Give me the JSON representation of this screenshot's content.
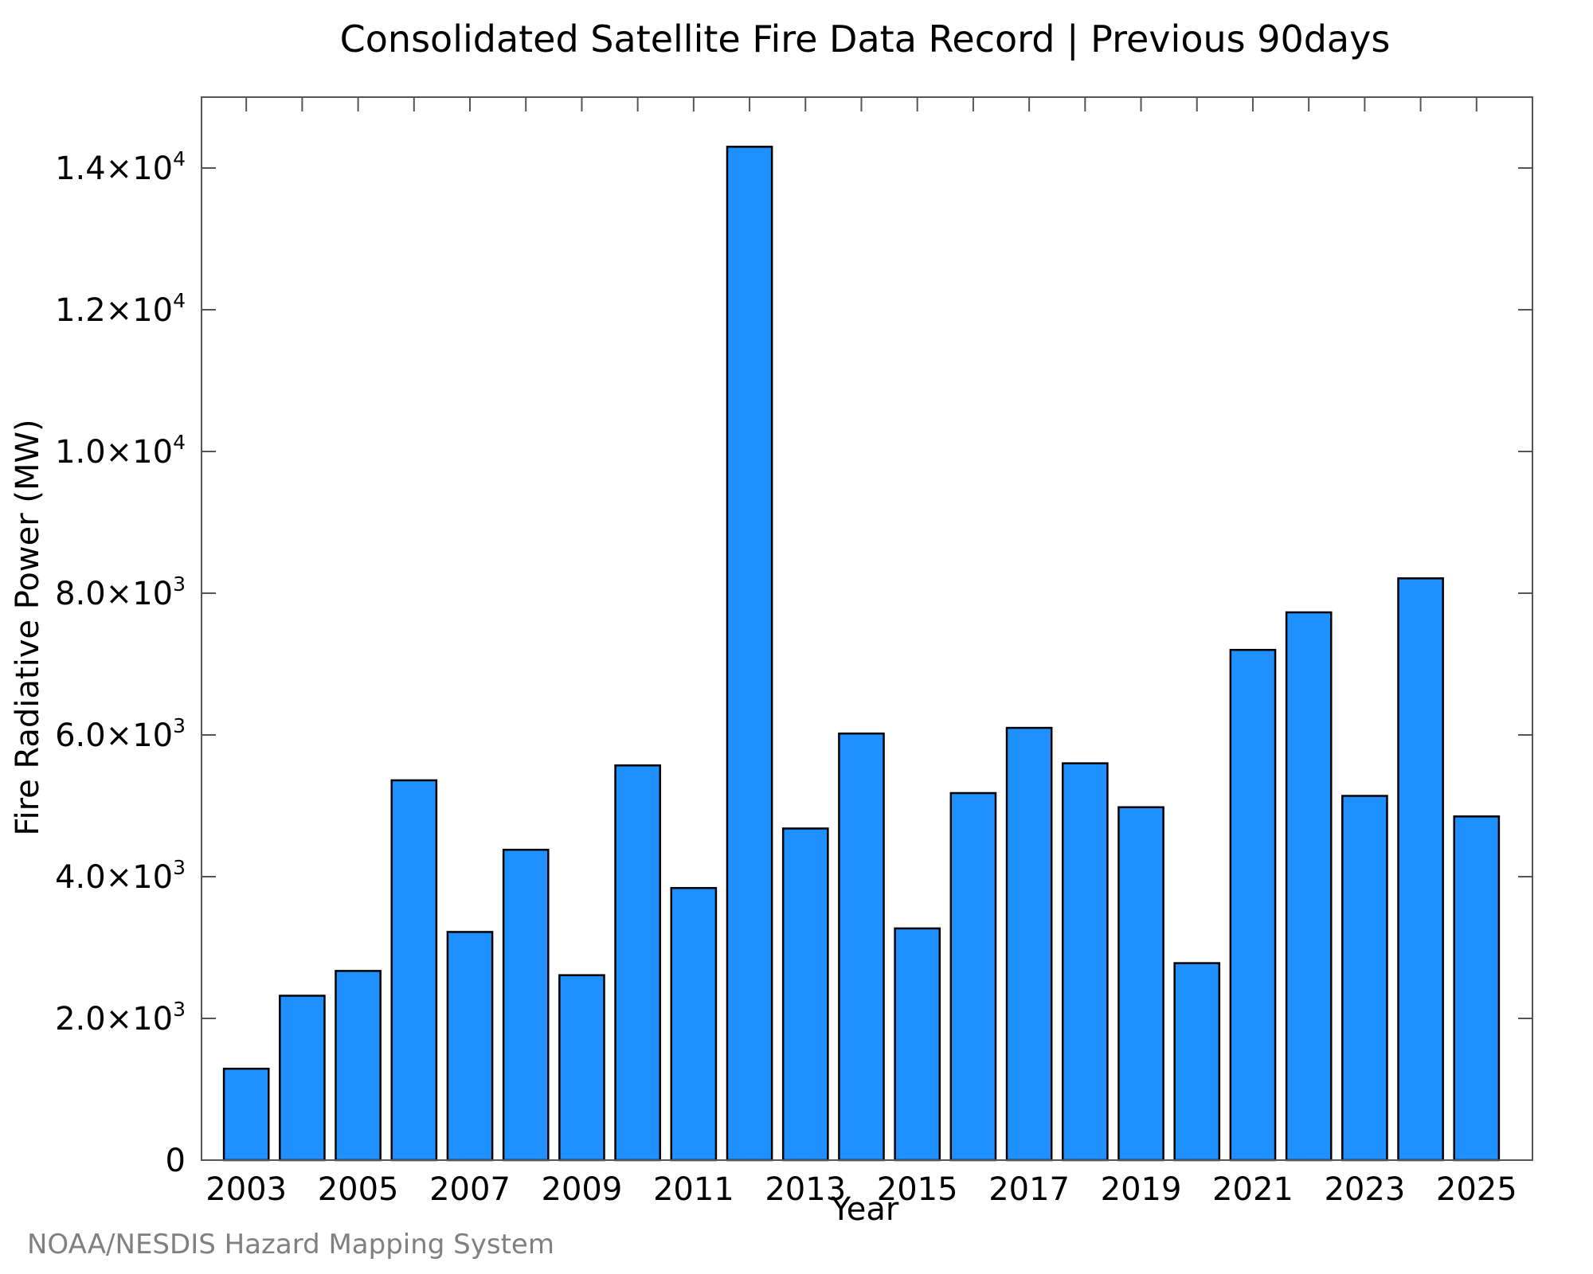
{
  "chart_data": {
    "type": "bar",
    "title": "Consolidated Satellite Fire Data Record | Previous 90days",
    "xlabel": "Year",
    "ylabel": "Fire Radiative Power (MW)",
    "credit": "NOAA/NESDIS Hazard Mapping System",
    "categories": [
      "2003",
      "2004",
      "2005",
      "2006",
      "2007",
      "2008",
      "2009",
      "2010",
      "2011",
      "2012",
      "2013",
      "2014",
      "2015",
      "2016",
      "2017",
      "2018",
      "2019",
      "2020",
      "2021",
      "2022",
      "2023",
      "2024",
      "2025"
    ],
    "values": [
      1290,
      2320,
      2670,
      5360,
      3220,
      4380,
      2610,
      5570,
      3840,
      14300,
      4680,
      6020,
      3270,
      5180,
      6100,
      5600,
      4980,
      2780,
      7200,
      7730,
      5140,
      8210,
      4850
    ],
    "ylim": [
      0,
      15000
    ],
    "xlim": [
      2002.2,
      2026
    ],
    "y_ticks": [
      {
        "value": 0,
        "mantissa": "0",
        "exponent": ""
      },
      {
        "value": 2000,
        "mantissa": "2.0×10",
        "exponent": "3"
      },
      {
        "value": 4000,
        "mantissa": "4.0×10",
        "exponent": "3"
      },
      {
        "value": 6000,
        "mantissa": "6.0×10",
        "exponent": "3"
      },
      {
        "value": 8000,
        "mantissa": "8.0×10",
        "exponent": "3"
      },
      {
        "value": 10000,
        "mantissa": "1.0×10",
        "exponent": "4"
      },
      {
        "value": 12000,
        "mantissa": "1.2×10",
        "exponent": "4"
      },
      {
        "value": 14000,
        "mantissa": "1.4×10",
        "exponent": "4"
      }
    ],
    "x_tick_labels": [
      "2003",
      "2005",
      "2007",
      "2009",
      "2011",
      "2013",
      "2015",
      "2017",
      "2019",
      "2021",
      "2023",
      "2025"
    ],
    "grid": false,
    "legend": "none",
    "bar_color": "#1e90ff",
    "bar_edge_color": "#000000",
    "credit_color": "#808080"
  }
}
